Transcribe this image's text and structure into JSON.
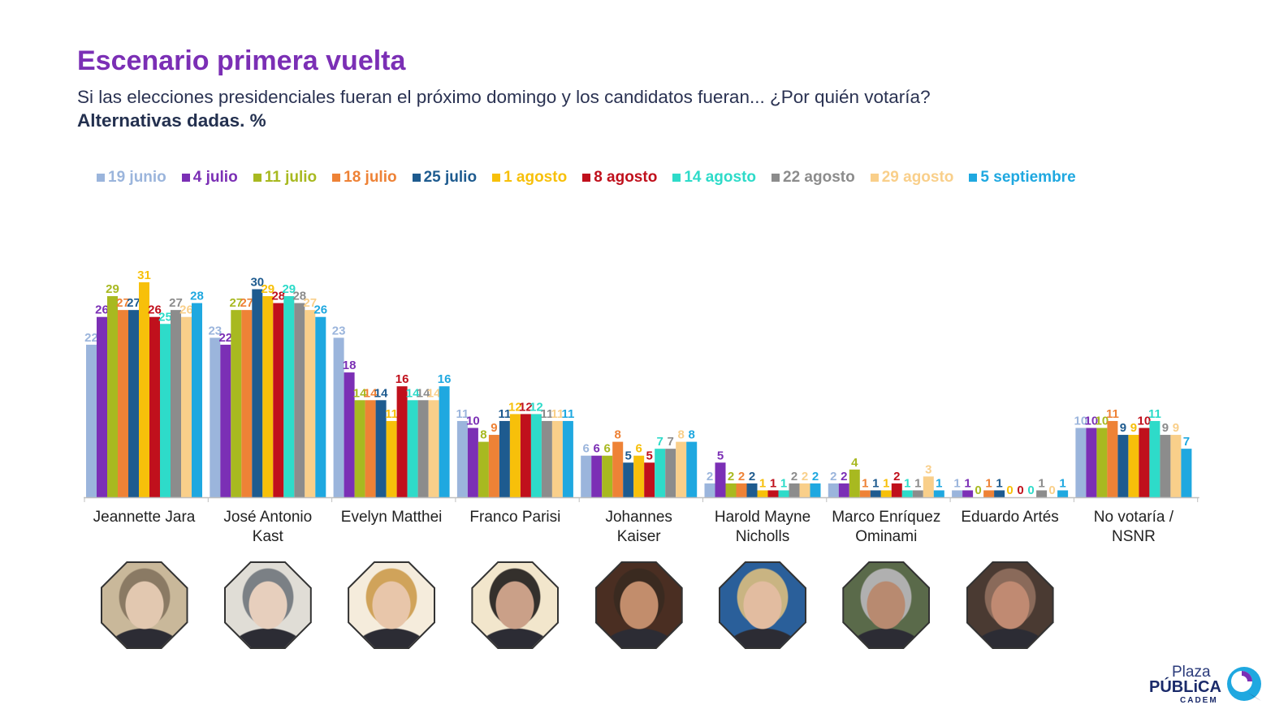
{
  "title": "Escenario primera vuelta",
  "subtitle": "Si las elecciones presidenciales fueran el próximo domingo y los candidatos fueran... ¿Por quién votaría?",
  "subtitle2": "Alternativas dadas. %",
  "logo": {
    "plaza": "Plaza",
    "publica": "PÚBLiCA",
    "cadem": "CADEM"
  },
  "chart_data": {
    "type": "bar",
    "categories": [
      [
        "Jeannette Jara"
      ],
      [
        "José Antonio",
        "Kast"
      ],
      [
        "Evelyn Matthei"
      ],
      [
        "Franco Parisi"
      ],
      [
        "Johannes",
        "Kaiser"
      ],
      [
        "Harold Mayne",
        "Nicholls"
      ],
      [
        "Marco Enríquez",
        "Ominami"
      ],
      [
        "Eduardo Artés"
      ],
      [
        "No votaría /",
        "NSNR"
      ]
    ],
    "series": [
      {
        "name": "19 junio",
        "color": "#9bb5dc",
        "values": [
          22,
          23,
          23,
          11,
          6,
          2,
          2,
          1,
          10
        ]
      },
      {
        "name": "4 julio",
        "color": "#7b2fb5",
        "values": [
          26,
          22,
          18,
          10,
          6,
          5,
          2,
          1,
          10
        ]
      },
      {
        "name": "11 julio",
        "color": "#a8b920",
        "values": [
          29,
          27,
          14,
          8,
          6,
          2,
          4,
          0,
          10
        ]
      },
      {
        "name": "18 julio",
        "color": "#ee8236",
        "values": [
          27,
          27,
          14,
          9,
          8,
          2,
          1,
          1,
          11
        ]
      },
      {
        "name": "25 julio",
        "color": "#1e5b8f",
        "values": [
          27,
          30,
          14,
          11,
          5,
          2,
          1,
          1,
          9
        ]
      },
      {
        "name": "1 agosto",
        "color": "#f7c00a",
        "values": [
          31,
          29,
          11,
          12,
          6,
          1,
          1,
          0,
          9
        ]
      },
      {
        "name": "8 agosto",
        "color": "#c0101c",
        "values": [
          26,
          28,
          16,
          12,
          5,
          1,
          2,
          0,
          10
        ]
      },
      {
        "name": "14 agosto",
        "color": "#2edbc9",
        "values": [
          25,
          29,
          14,
          12,
          7,
          1,
          1,
          0,
          11
        ]
      },
      {
        "name": "22 agosto",
        "color": "#8c8c8c",
        "values": [
          27,
          28,
          14,
          11,
          7,
          2,
          1,
          1,
          9
        ]
      },
      {
        "name": "29 agosto",
        "color": "#f9cf8a",
        "values": [
          26,
          27,
          14,
          11,
          8,
          2,
          3,
          0,
          9
        ]
      },
      {
        "name": "5 septiembre",
        "color": "#1fa8e0",
        "values": [
          28,
          26,
          16,
          11,
          8,
          2,
          1,
          1,
          7
        ]
      }
    ],
    "ylim": [
      0,
      31
    ],
    "grid": false,
    "legend": "top"
  },
  "photos": [
    {
      "name": "jeannette-jara-photo",
      "colors": [
        "#c9b89a",
        "#8a7a64",
        "#e2c8b0"
      ]
    },
    {
      "name": "jose-antonio-kast-photo",
      "colors": [
        "#e0ddd6",
        "#7b8085",
        "#e7cfbd"
      ]
    },
    {
      "name": "evelyn-matthei-photo",
      "colors": [
        "#f5ecdc",
        "#d0a35a",
        "#e8c6aa"
      ]
    },
    {
      "name": "franco-parisi-photo",
      "colors": [
        "#f2e6cc",
        "#34302c",
        "#caa088"
      ]
    },
    {
      "name": "johannes-kaiser-photo",
      "colors": [
        "#4a2e22",
        "#3a2a20",
        "#c28d6c"
      ]
    },
    {
      "name": "harold-mayne-nicholls-photo",
      "colors": [
        "#2a5f9a",
        "#c9b482",
        "#e2bca0"
      ]
    },
    {
      "name": "marco-enriquez-ominami-photo",
      "colors": [
        "#5a6a4a",
        "#b0b0b0",
        "#b88a70"
      ]
    },
    {
      "name": "eduardo-artes-photo",
      "colors": [
        "#4a3a32",
        "#8a6a5a",
        "#c08a72"
      ]
    }
  ]
}
